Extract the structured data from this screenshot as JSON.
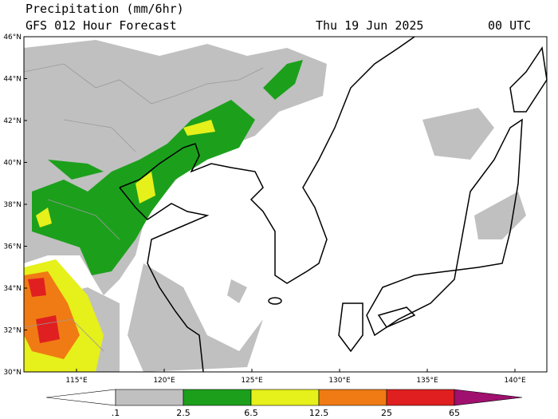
{
  "header": {
    "title": "Precipitation (mm/6hr)",
    "subtitle": "GFS 012 Hour Forecast",
    "date": "Thu 19 Jun 2025",
    "time": "00 UTC"
  },
  "map": {
    "lat_labels": [
      "46°N",
      "44°N",
      "42°N",
      "40°N",
      "38°N",
      "36°N",
      "34°N",
      "32°N",
      "30°N"
    ],
    "lon_labels": [
      "115°E",
      "120°E",
      "125°E",
      "130°E",
      "135°E",
      "140°E"
    ]
  },
  "colorbar": {
    "labels": [
      ".1",
      "2.5",
      "6.5",
      "12.5",
      "25",
      "65"
    ]
  }
}
